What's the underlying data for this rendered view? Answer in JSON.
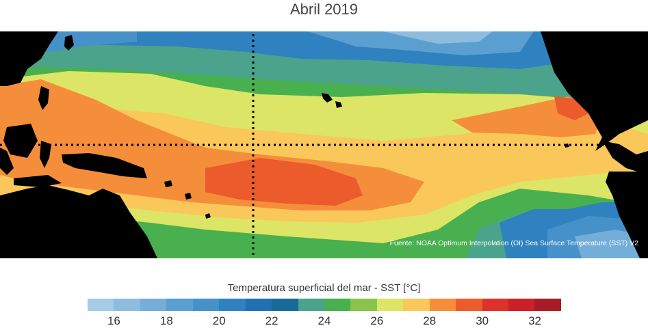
{
  "title": "Abril 2019",
  "source": "Fuente: NOAA Optimum Interpolation (OI) Sea Surface Temperature (SST) V2",
  "colorbar": {
    "title": "Temperatura superficial del mar - SST  [°C]",
    "min": 15,
    "max": 33,
    "tick_labels": [
      "16",
      "18",
      "20",
      "22",
      "24",
      "26",
      "28",
      "30",
      "32"
    ],
    "colors": [
      "#a6cbe4",
      "#8dbcdf",
      "#74aed8",
      "#5b9fd1",
      "#4691c9",
      "#2f81bf",
      "#1f71b2",
      "#186a99",
      "#4aa38a",
      "#49b04f",
      "#8ac34a",
      "#dce565",
      "#fac75a",
      "#f58e3a",
      "#ec5b2c",
      "#de3129",
      "#c9202a",
      "#a81c26"
    ]
  },
  "map": {
    "land_color": "#000000",
    "reference_line_color": "#000000"
  }
}
